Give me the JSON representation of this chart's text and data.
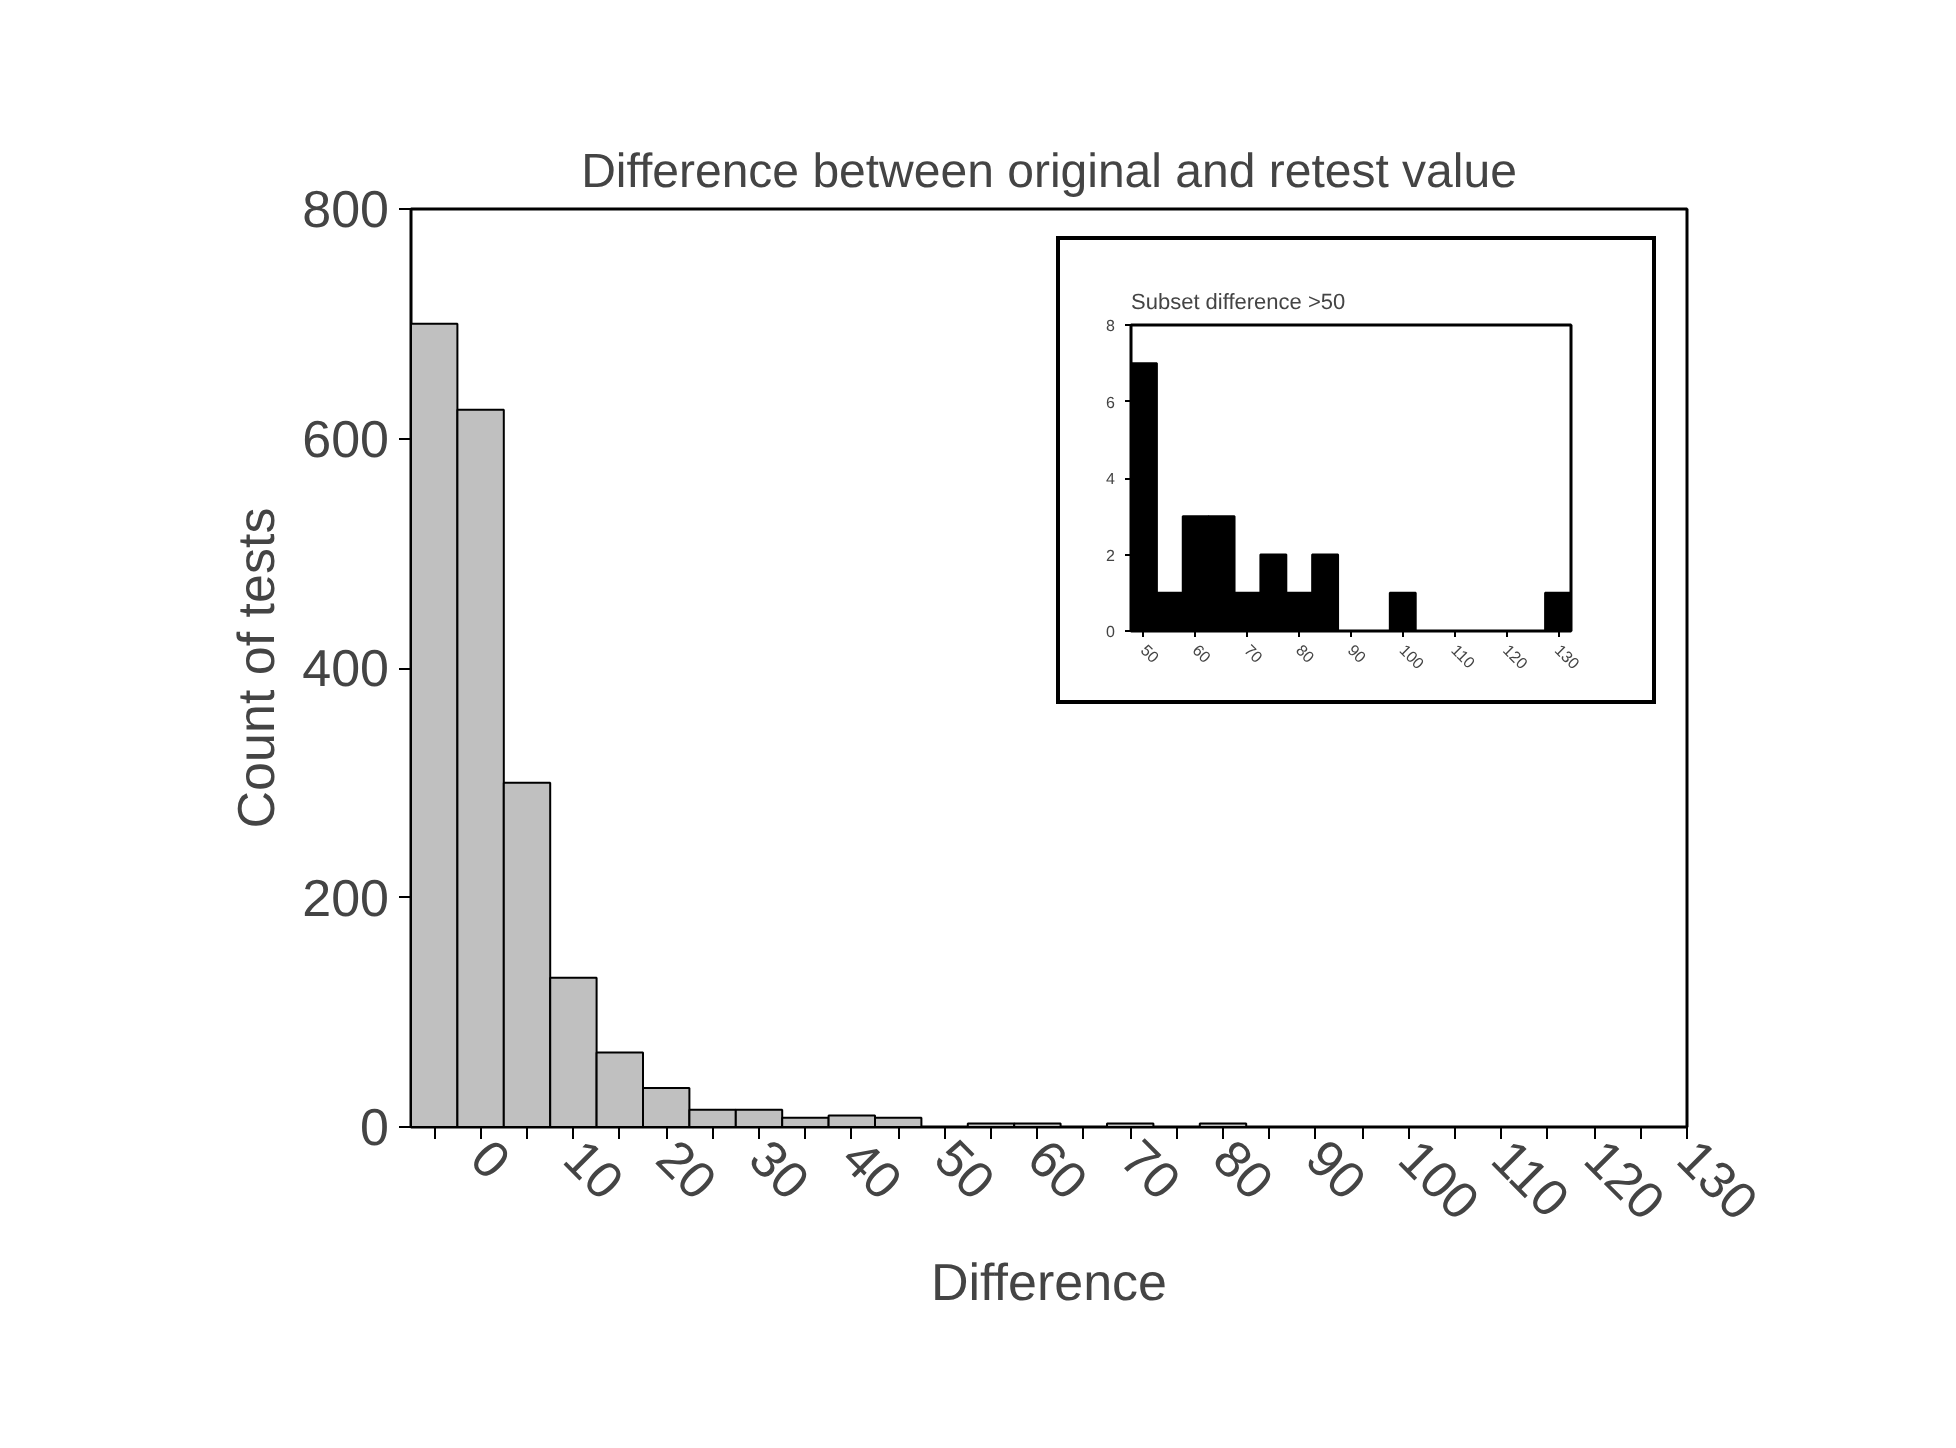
{
  "chart_data": [
    {
      "type": "histogram",
      "title": "Difference between original and retest value",
      "xlabel": "Difference",
      "ylabel": "Count of tests",
      "bins": [
        -7.5,
        -2.5,
        2.5,
        7.5,
        12.5,
        17.5,
        22.5,
        27.5,
        32.5,
        37.5,
        42.5,
        47.5,
        52.5,
        57.5,
        62.5,
        67.5,
        72.5,
        77.5,
        82.5,
        87.5,
        92.5,
        97.5,
        102.5,
        107.5,
        112.5,
        117.5,
        122.5,
        127.5
      ],
      "values": [
        700,
        625,
        300,
        130,
        65,
        34,
        15,
        15,
        8,
        10,
        8,
        0,
        3,
        3,
        0,
        3,
        0,
        3,
        0,
        0,
        0,
        0,
        0,
        0,
        0,
        0,
        0
      ],
      "color": "#c0c0c0",
      "xlim": [
        -7.5,
        130
      ],
      "ylim": [
        0,
        800
      ],
      "xticks": [
        {
          "value": -5,
          "label": null
        },
        0,
        {
          "value": 5,
          "label": null
        },
        10,
        {
          "value": 15,
          "label": null
        },
        20,
        {
          "value": 25,
          "label": null
        },
        30,
        {
          "value": 35,
          "label": null
        },
        40,
        {
          "value": 45,
          "label": null
        },
        50,
        {
          "value": 55,
          "label": null
        },
        60,
        {
          "value": 65,
          "label": null
        },
        70,
        {
          "value": 75,
          "label": null
        },
        80,
        {
          "value": 85,
          "label": null
        },
        90,
        {
          "value": 95,
          "label": null
        },
        100,
        {
          "value": 105,
          "label": null
        },
        110,
        {
          "value": 115,
          "label": null
        },
        120,
        {
          "value": 125,
          "label": null
        },
        130
      ],
      "yticks": [
        0,
        200,
        400,
        600,
        800
      ],
      "grid": false
    },
    {
      "type": "histogram",
      "title": "Subset  difference >50",
      "bins": [
        47.5,
        52.5,
        57.5,
        62.5,
        67.5,
        72.5,
        77.5,
        82.5,
        87.5,
        92.5,
        97.5,
        102.5,
        107.5,
        112.5,
        117.5,
        122.5,
        127.5,
        132.5
      ],
      "values": [
        7,
        1,
        3,
        3,
        1,
        2,
        1,
        2,
        0,
        0,
        1,
        0,
        0,
        0,
        0,
        0,
        1
      ],
      "color": "#000000",
      "xlim": [
        47.5,
        132.5
      ],
      "ylim": [
        0,
        8
      ],
      "xticks": [
        50,
        60,
        70,
        80,
        90,
        100,
        110,
        120,
        130
      ],
      "yticks": [
        0,
        2,
        4,
        6,
        8
      ],
      "grid": false
    }
  ]
}
